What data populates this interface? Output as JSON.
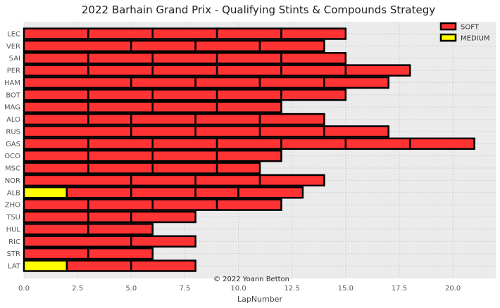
{
  "chart_data": {
    "type": "bar",
    "orientation": "horizontal",
    "title": "2022 Barhain Grand Prix - Qualifying Stints & Compounds Strategy",
    "xlabel": "LapNumber",
    "ylabel": "",
    "xlim": [
      0,
      22
    ],
    "xticks": [
      "0.0",
      "2.5",
      "5.0",
      "7.5",
      "10.0",
      "12.5",
      "15.0",
      "17.5",
      "20.0"
    ],
    "grid": true,
    "legend_position": "top-right",
    "credit": "© 2022 Yoann Betton",
    "compounds": [
      {
        "name": "SOFT",
        "color": "#ff3333"
      },
      {
        "name": "MEDIUM",
        "color": "#ffff00"
      }
    ],
    "drivers": [
      {
        "driver": "LEC",
        "stints": [
          {
            "compound": "SOFT",
            "start": 0,
            "end": 3
          },
          {
            "compound": "SOFT",
            "start": 3,
            "end": 6
          },
          {
            "compound": "SOFT",
            "start": 6,
            "end": 9
          },
          {
            "compound": "SOFT",
            "start": 9,
            "end": 12
          },
          {
            "compound": "SOFT",
            "start": 12,
            "end": 15
          }
        ]
      },
      {
        "driver": "VER",
        "stints": [
          {
            "compound": "SOFT",
            "start": 0,
            "end": 5
          },
          {
            "compound": "SOFT",
            "start": 5,
            "end": 8
          },
          {
            "compound": "SOFT",
            "start": 8,
            "end": 11
          },
          {
            "compound": "SOFT",
            "start": 11,
            "end": 14
          }
        ]
      },
      {
        "driver": "SAI",
        "stints": [
          {
            "compound": "SOFT",
            "start": 0,
            "end": 3
          },
          {
            "compound": "SOFT",
            "start": 3,
            "end": 6
          },
          {
            "compound": "SOFT",
            "start": 6,
            "end": 9
          },
          {
            "compound": "SOFT",
            "start": 9,
            "end": 12
          },
          {
            "compound": "SOFT",
            "start": 12,
            "end": 15
          }
        ]
      },
      {
        "driver": "PER",
        "stints": [
          {
            "compound": "SOFT",
            "start": 0,
            "end": 3
          },
          {
            "compound": "SOFT",
            "start": 3,
            "end": 6
          },
          {
            "compound": "SOFT",
            "start": 6,
            "end": 9
          },
          {
            "compound": "SOFT",
            "start": 9,
            "end": 12
          },
          {
            "compound": "SOFT",
            "start": 12,
            "end": 15
          },
          {
            "compound": "SOFT",
            "start": 15,
            "end": 18
          }
        ]
      },
      {
        "driver": "HAM",
        "stints": [
          {
            "compound": "SOFT",
            "start": 0,
            "end": 5
          },
          {
            "compound": "SOFT",
            "start": 5,
            "end": 8
          },
          {
            "compound": "SOFT",
            "start": 8,
            "end": 11
          },
          {
            "compound": "SOFT",
            "start": 11,
            "end": 14
          },
          {
            "compound": "SOFT",
            "start": 14,
            "end": 17
          }
        ]
      },
      {
        "driver": "BOT",
        "stints": [
          {
            "compound": "SOFT",
            "start": 0,
            "end": 3
          },
          {
            "compound": "SOFT",
            "start": 3,
            "end": 6
          },
          {
            "compound": "SOFT",
            "start": 6,
            "end": 9
          },
          {
            "compound": "SOFT",
            "start": 9,
            "end": 12
          },
          {
            "compound": "SOFT",
            "start": 12,
            "end": 15
          }
        ]
      },
      {
        "driver": "MAG",
        "stints": [
          {
            "compound": "SOFT",
            "start": 0,
            "end": 3
          },
          {
            "compound": "SOFT",
            "start": 3,
            "end": 6
          },
          {
            "compound": "SOFT",
            "start": 6,
            "end": 9
          },
          {
            "compound": "SOFT",
            "start": 9,
            "end": 12
          }
        ]
      },
      {
        "driver": "ALO",
        "stints": [
          {
            "compound": "SOFT",
            "start": 0,
            "end": 3
          },
          {
            "compound": "SOFT",
            "start": 3,
            "end": 5
          },
          {
            "compound": "SOFT",
            "start": 5,
            "end": 8
          },
          {
            "compound": "SOFT",
            "start": 8,
            "end": 11
          },
          {
            "compound": "SOFT",
            "start": 11,
            "end": 14
          }
        ]
      },
      {
        "driver": "RUS",
        "stints": [
          {
            "compound": "SOFT",
            "start": 0,
            "end": 5
          },
          {
            "compound": "SOFT",
            "start": 5,
            "end": 8
          },
          {
            "compound": "SOFT",
            "start": 8,
            "end": 11
          },
          {
            "compound": "SOFT",
            "start": 11,
            "end": 14
          },
          {
            "compound": "SOFT",
            "start": 14,
            "end": 17
          }
        ]
      },
      {
        "driver": "GAS",
        "stints": [
          {
            "compound": "SOFT",
            "start": 0,
            "end": 3
          },
          {
            "compound": "SOFT",
            "start": 3,
            "end": 6
          },
          {
            "compound": "SOFT",
            "start": 6,
            "end": 9
          },
          {
            "compound": "SOFT",
            "start": 9,
            "end": 12
          },
          {
            "compound": "SOFT",
            "start": 12,
            "end": 15
          },
          {
            "compound": "SOFT",
            "start": 15,
            "end": 18
          },
          {
            "compound": "SOFT",
            "start": 18,
            "end": 21
          }
        ]
      },
      {
        "driver": "OCO",
        "stints": [
          {
            "compound": "SOFT",
            "start": 0,
            "end": 3
          },
          {
            "compound": "SOFT",
            "start": 3,
            "end": 6
          },
          {
            "compound": "SOFT",
            "start": 6,
            "end": 9
          },
          {
            "compound": "SOFT",
            "start": 9,
            "end": 12
          }
        ]
      },
      {
        "driver": "MSC",
        "stints": [
          {
            "compound": "SOFT",
            "start": 0,
            "end": 3
          },
          {
            "compound": "SOFT",
            "start": 3,
            "end": 6
          },
          {
            "compound": "SOFT",
            "start": 6,
            "end": 9
          },
          {
            "compound": "SOFT",
            "start": 9,
            "end": 11
          }
        ]
      },
      {
        "driver": "NOR",
        "stints": [
          {
            "compound": "SOFT",
            "start": 0,
            "end": 5
          },
          {
            "compound": "SOFT",
            "start": 5,
            "end": 8
          },
          {
            "compound": "SOFT",
            "start": 8,
            "end": 11
          },
          {
            "compound": "SOFT",
            "start": 11,
            "end": 14
          }
        ]
      },
      {
        "driver": "ALB",
        "stints": [
          {
            "compound": "MEDIUM",
            "start": 0,
            "end": 2
          },
          {
            "compound": "SOFT",
            "start": 2,
            "end": 5
          },
          {
            "compound": "SOFT",
            "start": 5,
            "end": 8
          },
          {
            "compound": "SOFT",
            "start": 8,
            "end": 10
          },
          {
            "compound": "SOFT",
            "start": 10,
            "end": 13
          }
        ]
      },
      {
        "driver": "ZHO",
        "stints": [
          {
            "compound": "SOFT",
            "start": 0,
            "end": 3
          },
          {
            "compound": "SOFT",
            "start": 3,
            "end": 6
          },
          {
            "compound": "SOFT",
            "start": 6,
            "end": 9
          },
          {
            "compound": "SOFT",
            "start": 9,
            "end": 12
          }
        ]
      },
      {
        "driver": "TSU",
        "stints": [
          {
            "compound": "SOFT",
            "start": 0,
            "end": 3
          },
          {
            "compound": "SOFT",
            "start": 3,
            "end": 5
          },
          {
            "compound": "SOFT",
            "start": 5,
            "end": 8
          }
        ]
      },
      {
        "driver": "HUL",
        "stints": [
          {
            "compound": "SOFT",
            "start": 0,
            "end": 3
          },
          {
            "compound": "SOFT",
            "start": 3,
            "end": 6
          }
        ]
      },
      {
        "driver": "RIC",
        "stints": [
          {
            "compound": "SOFT",
            "start": 0,
            "end": 5
          },
          {
            "compound": "SOFT",
            "start": 5,
            "end": 8
          }
        ]
      },
      {
        "driver": "STR",
        "stints": [
          {
            "compound": "SOFT",
            "start": 0,
            "end": 3
          },
          {
            "compound": "SOFT",
            "start": 3,
            "end": 6
          }
        ]
      },
      {
        "driver": "LAT",
        "stints": [
          {
            "compound": "MEDIUM",
            "start": 0,
            "end": 2
          },
          {
            "compound": "SOFT",
            "start": 2,
            "end": 5
          },
          {
            "compound": "SOFT",
            "start": 5,
            "end": 8
          }
        ]
      }
    ]
  }
}
